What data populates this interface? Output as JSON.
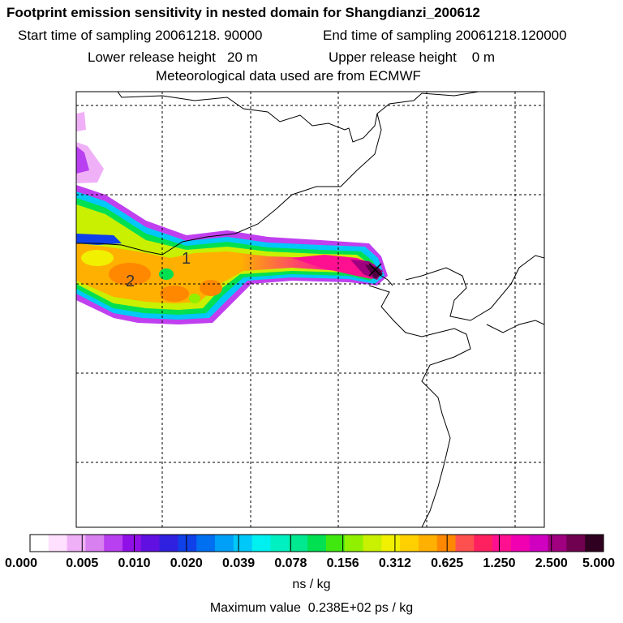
{
  "header": {
    "title": "Footprint emission sensitivity in nested domain for Shangdianzi_200612",
    "start_label": "Start time of sampling 20061218. 90000",
    "end_label": "End time of sampling 20061218.120000",
    "lower_label": "Lower release height   20 m",
    "upper_label": "Upper release height    0 m",
    "met_label": "Meteorological data used are from ECMWF"
  },
  "map": {
    "site_labels": [
      "1",
      "2"
    ]
  },
  "legend": {
    "ticks": [
      "0.000",
      "0.005",
      "0.010",
      "0.020",
      "0.039",
      "0.078",
      "0.156",
      "0.312",
      "0.625",
      "1.250",
      "2.500",
      "5.000"
    ],
    "units": "ns / kg",
    "max_prefix": "Maximum value",
    "max_value": "0.238E+02 ps / kg",
    "colors": [
      "#ffffff",
      "#ffe0ff",
      "#f0b0f8",
      "#d880f0",
      "#b840f0",
      "#9010e8",
      "#6010e0",
      "#3020e0",
      "#1040e8",
      "#0070f0",
      "#00a0f8",
      "#00c8f8",
      "#00f0f0",
      "#00f0c0",
      "#00e890",
      "#00e050",
      "#40e810",
      "#90f000",
      "#c8f000",
      "#f0f000",
      "#ffd000",
      "#ffb000",
      "#ff8800",
      "#ff5050",
      "#ff2060",
      "#ff1090",
      "#f000b0",
      "#d000c0",
      "#a00080",
      "#700050",
      "#300020"
    ]
  }
}
